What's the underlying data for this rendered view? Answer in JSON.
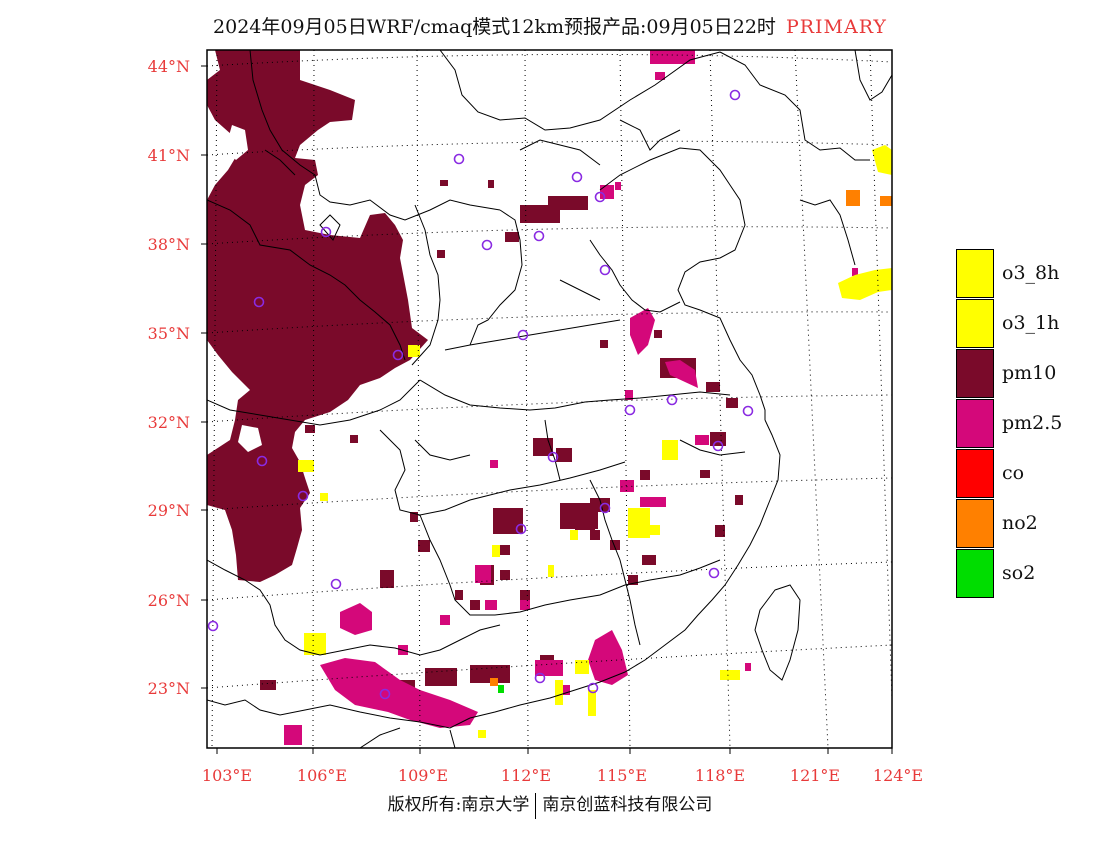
{
  "title": {
    "main": "2024年09月05日WRF/cmaq模式12km预报产品:09月05日22时",
    "tag": "PRIMARY"
  },
  "axes": {
    "lat_labels": [
      "44°N",
      "41°N",
      "38°N",
      "35°N",
      "32°N",
      "29°N",
      "26°N",
      "23°N"
    ],
    "lon_labels": [
      "103°E",
      "106°E",
      "109°E",
      "112°E",
      "115°E",
      "118°E",
      "121°E",
      "124°E"
    ]
  },
  "legend": [
    {
      "label": "o3_8h",
      "color": "#ffff00"
    },
    {
      "label": "o3_1h",
      "color": "#ffff00"
    },
    {
      "label": "pm10",
      "color": "#7a0a2a"
    },
    {
      "label": "pm2.5",
      "color": "#d4087a"
    },
    {
      "label": "co",
      "color": "#ff0000"
    },
    {
      "label": "no2",
      "color": "#ff8000"
    },
    {
      "label": "so2",
      "color": "#00dd00"
    }
  ],
  "footer": {
    "left": "版权所有:南京大学",
    "right": "南京创蓝科技有限公司"
  }
}
